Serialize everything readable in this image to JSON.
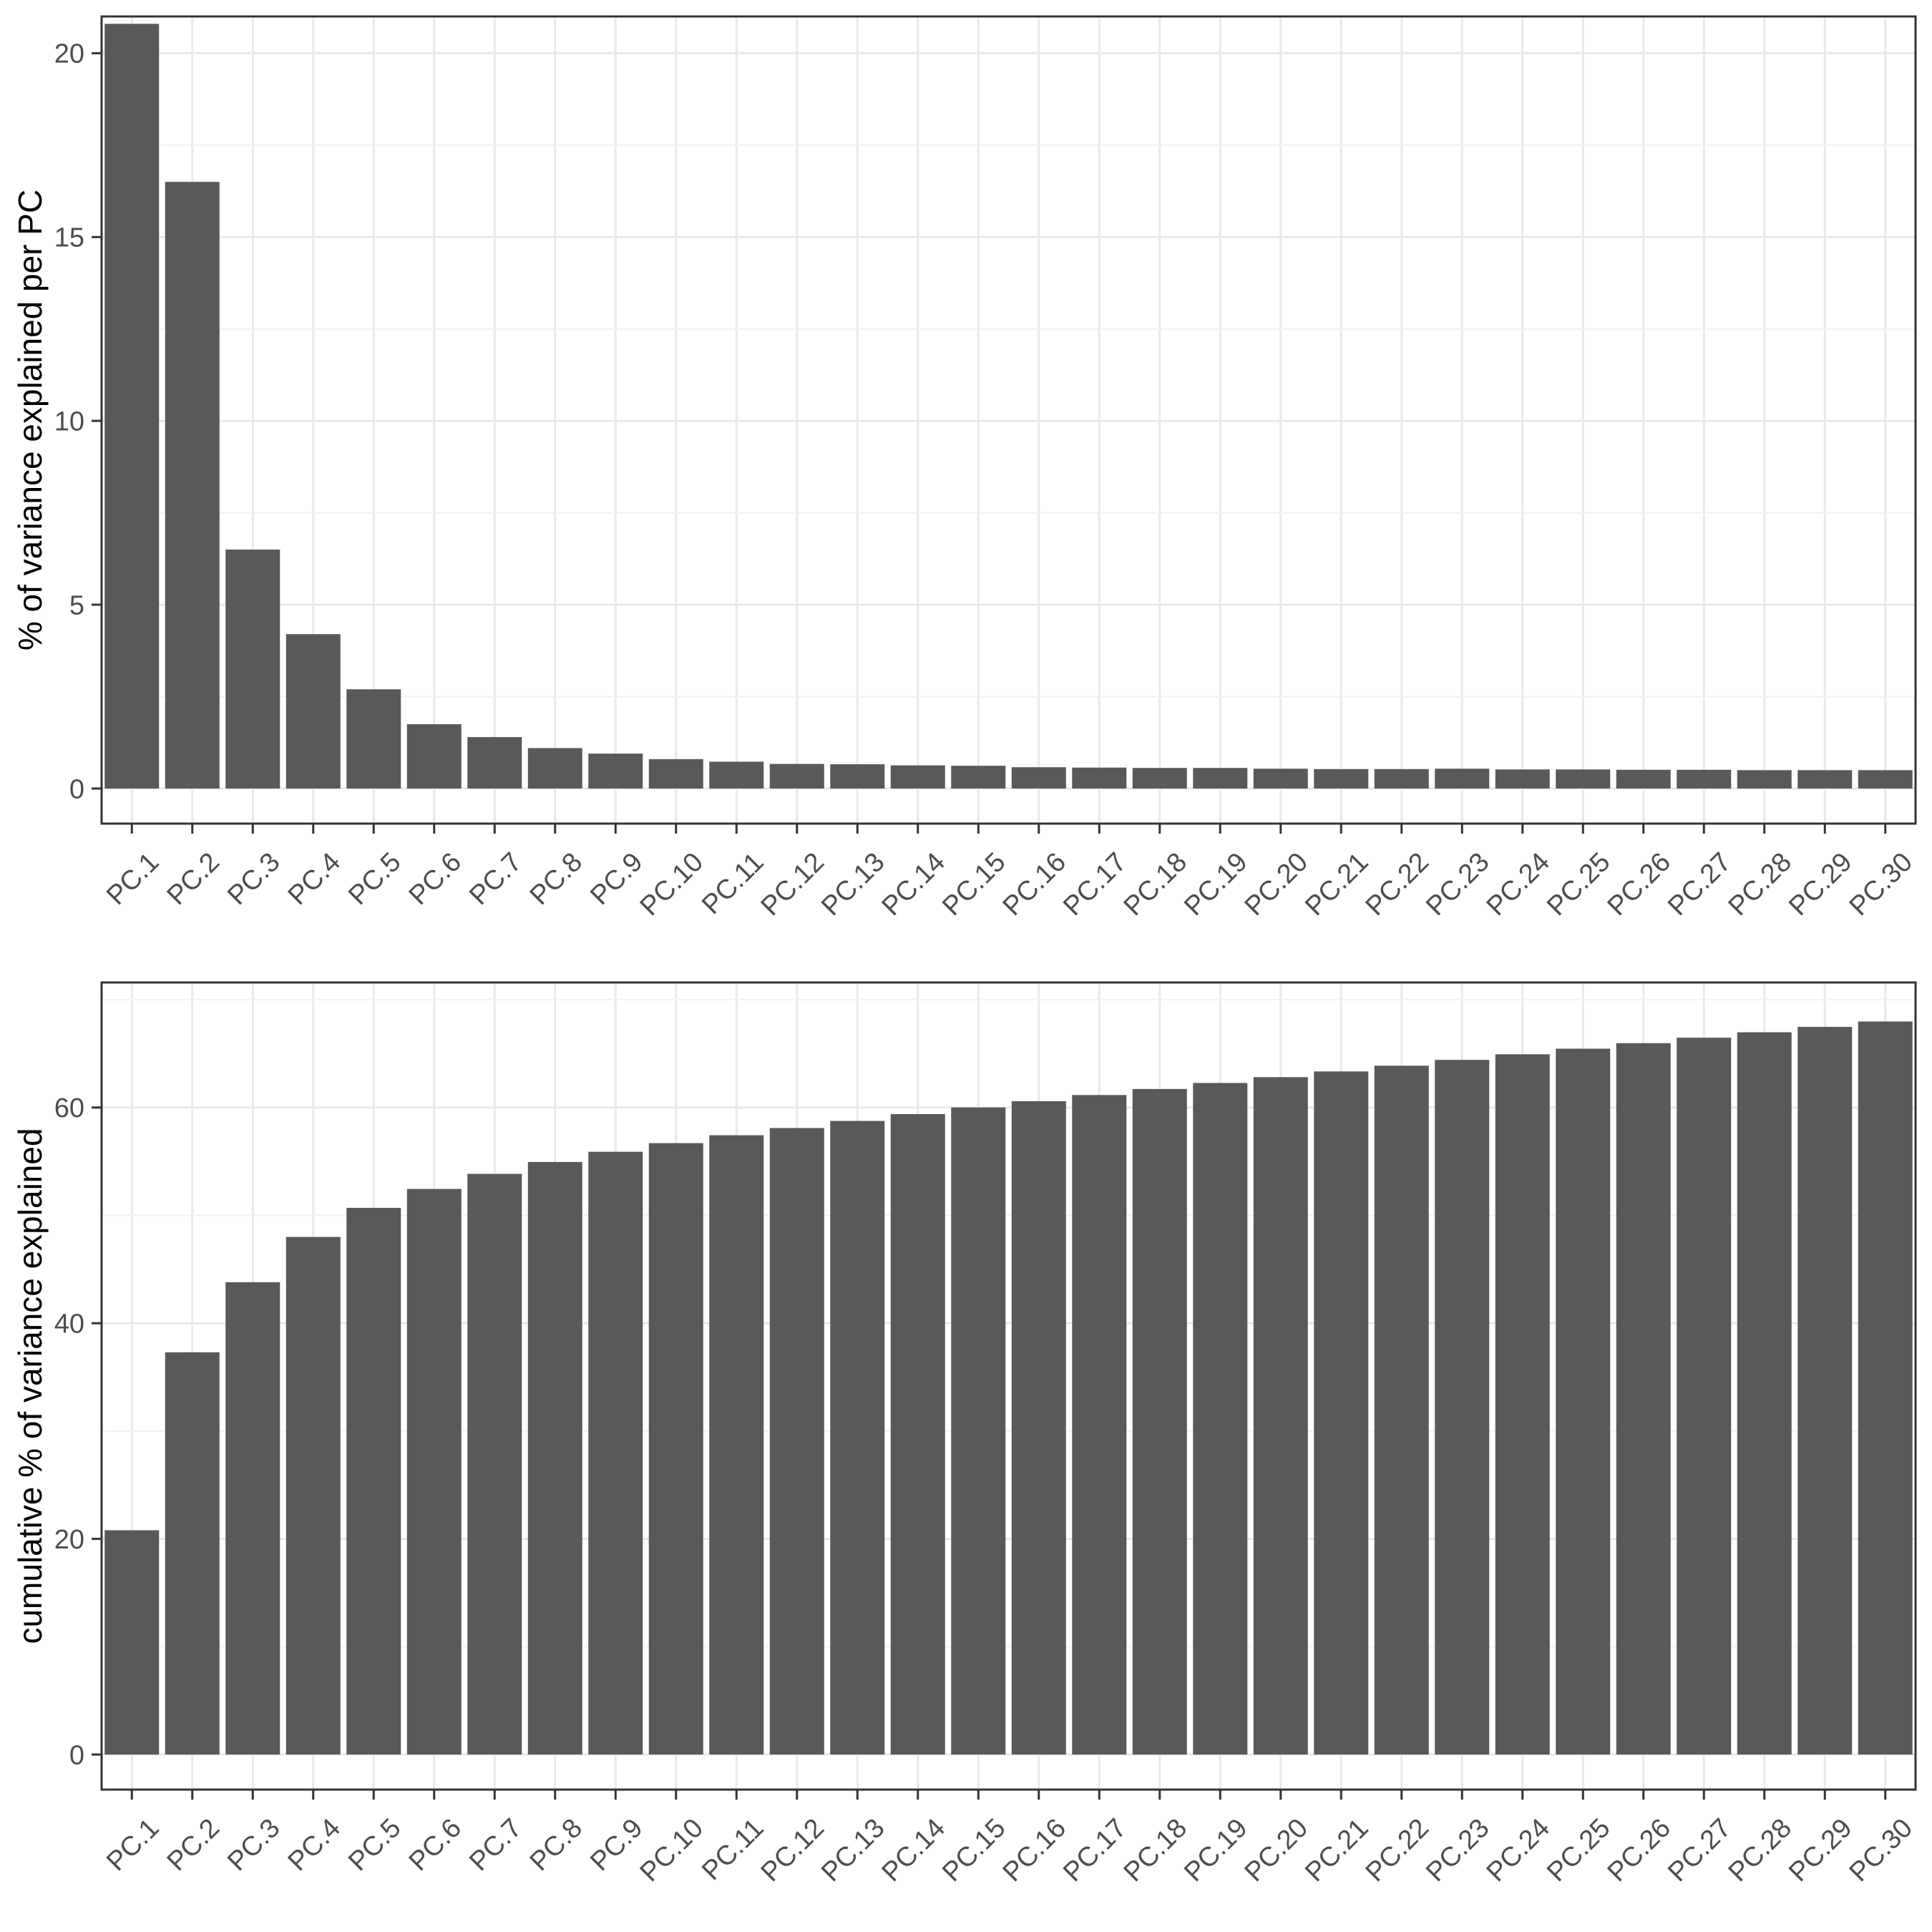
{
  "figure": {
    "description": "PCA scree plot with two stacked bar panels",
    "background": "#ffffff",
    "bar_fill": "#595959",
    "panel_border_color": "#333333",
    "grid_major_color": "#e9e9e9",
    "grid_minor_color": "#f2f2f2",
    "tick_color": "#333333",
    "axis_text_color": "#4d4d4d",
    "axis_title_color": "#000000"
  },
  "chart_data": [
    {
      "type": "bar",
      "title": "",
      "xlabel": "",
      "ylabel": "% of variance explained per PC",
      "categories": [
        "PC.1",
        "PC.2",
        "PC.3",
        "PC.4",
        "PC.5",
        "PC.6",
        "PC.7",
        "PC.8",
        "PC.9",
        "PC.10",
        "PC.11",
        "PC.12",
        "PC.13",
        "PC.14",
        "PC.15",
        "PC.16",
        "PC.17",
        "PC.18",
        "PC.19",
        "PC.20",
        "PC.21",
        "PC.22",
        "PC.23",
        "PC.24",
        "PC.25",
        "PC.26",
        "PC.27",
        "PC.28",
        "PC.29",
        "PC.30"
      ],
      "values": [
        20.8,
        16.5,
        6.5,
        4.2,
        2.7,
        1.75,
        1.4,
        1.1,
        0.95,
        0.8,
        0.73,
        0.67,
        0.66,
        0.63,
        0.62,
        0.58,
        0.57,
        0.56,
        0.56,
        0.54,
        0.53,
        0.53,
        0.54,
        0.52,
        0.52,
        0.51,
        0.51,
        0.5,
        0.5,
        0.5
      ],
      "ylim": [
        0,
        21
      ],
      "yticks": [
        0,
        5,
        10,
        15,
        20
      ],
      "yminor": [
        2.5,
        7.5,
        12.5,
        17.5
      ],
      "grid": "major+minor",
      "legend": "none",
      "x_tick_label_angle": 45
    },
    {
      "type": "bar",
      "title": "",
      "xlabel": "",
      "ylabel": "cumulative % of variance explained",
      "categories": [
        "PC.1",
        "PC.2",
        "PC.3",
        "PC.4",
        "PC.5",
        "PC.6",
        "PC.7",
        "PC.8",
        "PC.9",
        "PC.10",
        "PC.11",
        "PC.12",
        "PC.13",
        "PC.14",
        "PC.15",
        "PC.16",
        "PC.17",
        "PC.18",
        "PC.19",
        "PC.20",
        "PC.21",
        "PC.22",
        "PC.23",
        "PC.24",
        "PC.25",
        "PC.26",
        "PC.27",
        "PC.28",
        "PC.29",
        "PC.30"
      ],
      "values": [
        20.8,
        37.3,
        43.8,
        48.0,
        50.7,
        52.45,
        53.85,
        54.95,
        55.9,
        56.7,
        57.43,
        58.1,
        58.76,
        59.39,
        60.01,
        60.59,
        61.16,
        61.72,
        62.28,
        62.82,
        63.35,
        63.88,
        64.42,
        64.94,
        65.46,
        65.97,
        66.48,
        66.98,
        67.48,
        67.98
      ],
      "ylim": [
        0,
        71.6
      ],
      "yticks": [
        0,
        20,
        40,
        60
      ],
      "yminor": [
        10,
        30,
        50,
        70
      ],
      "grid": "major+minor",
      "legend": "none",
      "x_tick_label_angle": 45
    }
  ]
}
